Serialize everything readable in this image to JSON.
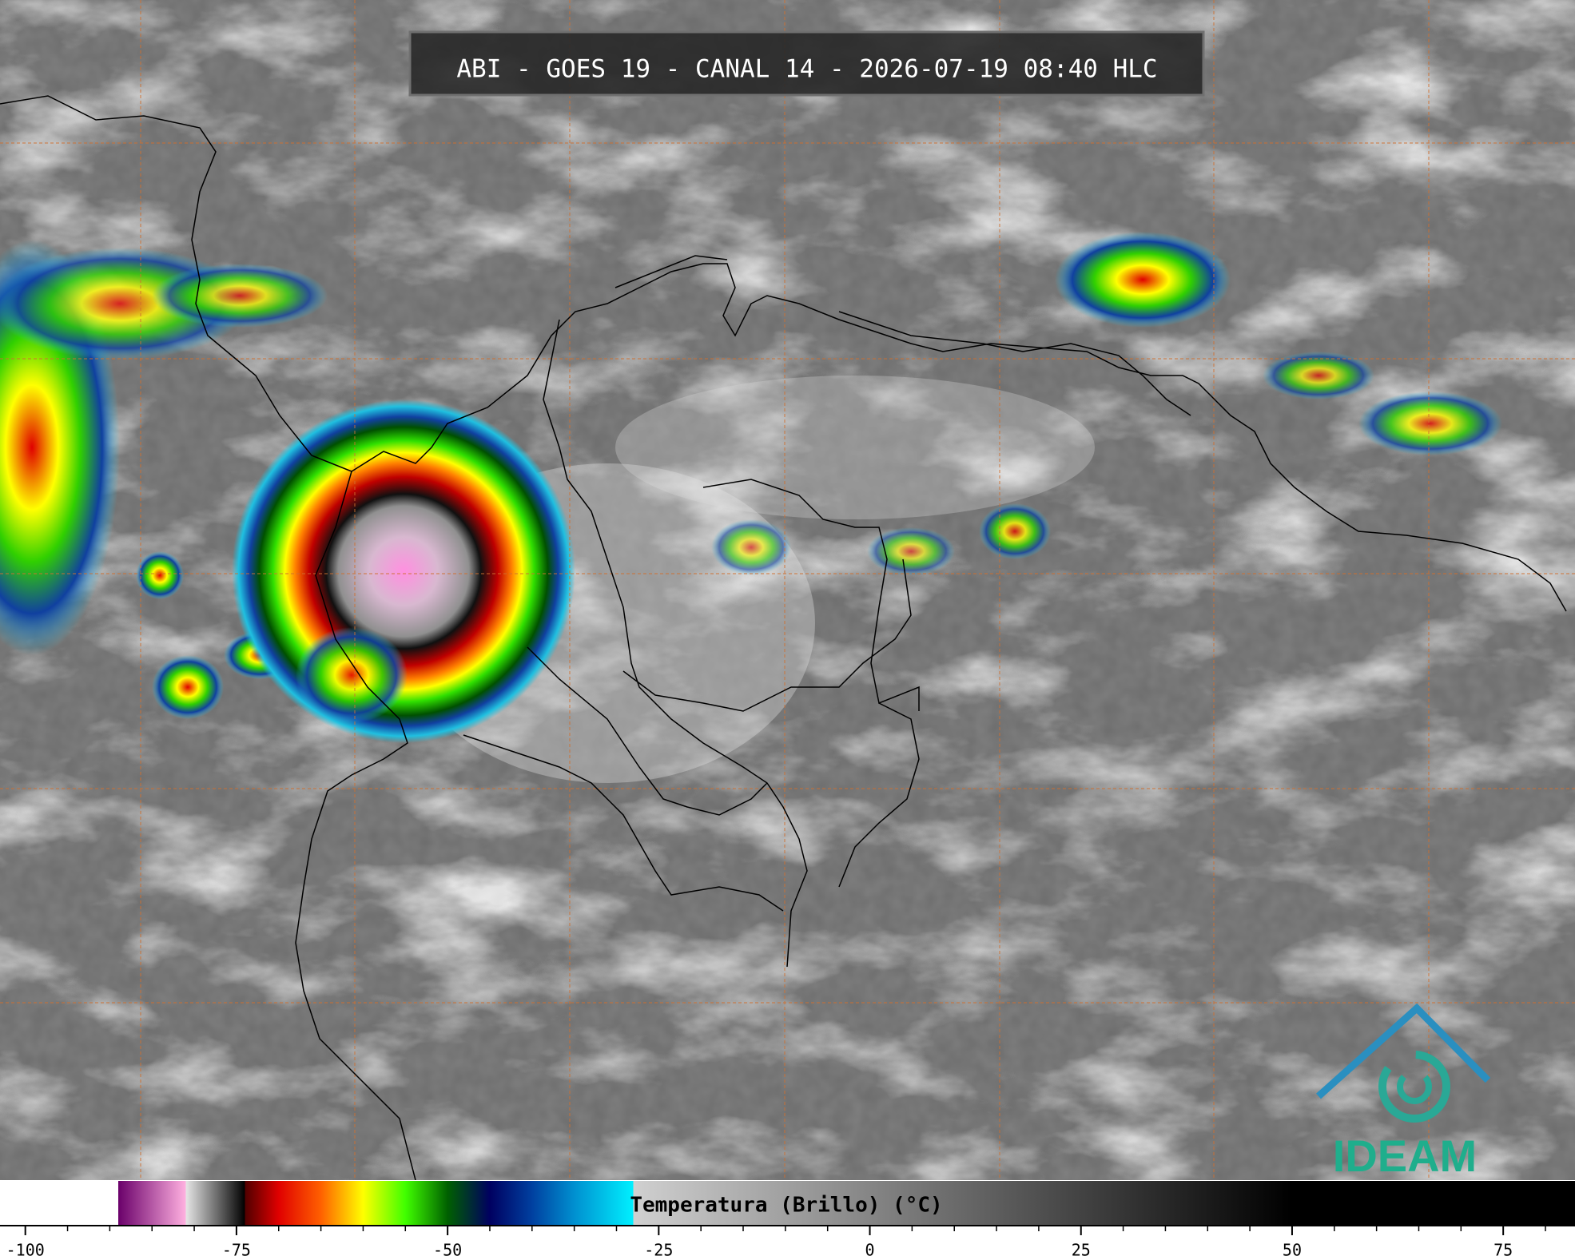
{
  "header": {
    "title": "ABI - GOES 19 - CANAL 14 - 2026-07-19 08:40 HLC"
  },
  "logo": {
    "text": "IDEAM"
  },
  "colorbar": {
    "label": "Temperatura (Brillo) (°C)",
    "range": [
      -103,
      83.5
    ],
    "ticks": [
      -100,
      -75,
      -50,
      -25,
      0,
      25,
      50,
      75
    ],
    "minor_ticks": [
      -95,
      -90,
      -85,
      -80,
      -70,
      -65,
      -60,
      -55,
      -45,
      -40,
      -35,
      -30,
      -20,
      -15,
      -10,
      -5,
      5,
      10,
      15,
      20,
      30,
      35,
      40,
      45,
      55,
      60,
      65,
      70,
      80
    ],
    "stops": [
      {
        "value": -103,
        "color": "#ffffff"
      },
      {
        "value": -89,
        "color": "#ffffff"
      },
      {
        "value": -89,
        "color": "#6a006a"
      },
      {
        "value": -81,
        "color": "#ffb0e0"
      },
      {
        "value": -81,
        "color": "#e6e6e6"
      },
      {
        "value": -74,
        "color": "#000000"
      },
      {
        "value": -74,
        "color": "#500000"
      },
      {
        "value": -70,
        "color": "#e00000"
      },
      {
        "value": -65,
        "color": "#ff6000"
      },
      {
        "value": -60,
        "color": "#ffff00"
      },
      {
        "value": -55,
        "color": "#40ff00"
      },
      {
        "value": -50,
        "color": "#006000"
      },
      {
        "value": -45,
        "color": "#000060"
      },
      {
        "value": -40,
        "color": "#0040a0"
      },
      {
        "value": -35,
        "color": "#0090d0"
      },
      {
        "value": -28,
        "color": "#00f0ff"
      },
      {
        "value": -28,
        "color": "#d0d0d0"
      },
      {
        "value": 50,
        "color": "#000000"
      },
      {
        "value": 83.5,
        "color": "#000000"
      }
    ]
  }
}
